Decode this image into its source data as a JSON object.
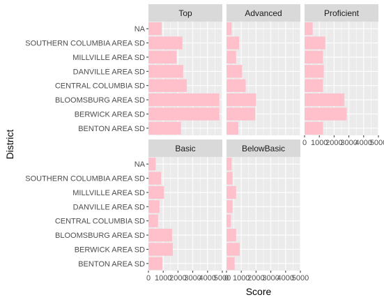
{
  "chart_data": {
    "type": "bar",
    "orientation": "horizontal",
    "xlabel": "Score",
    "ylabel": "District",
    "xlim": [
      0,
      5000
    ],
    "xticks": [
      0,
      1000,
      2000,
      3000,
      4000,
      5000
    ],
    "xtick_labels": [
      "0",
      "1000",
      "2000",
      "3000",
      "4000",
      "5000"
    ],
    "categories": [
      "NA",
      "SOUTHERN COLUMBIA AREA SD",
      "MILLVILLE AREA SD",
      "DANVILLE AREA SD",
      "CENTRAL COLUMBIA SD",
      "BLOOMSBURG AREA SD",
      "BERWICK AREA SD",
      "BENTON AREA SD"
    ],
    "bar_color": "#FFC0CB",
    "panel_bg": "#EBEBEB",
    "strip_bg": "#D9D9D9",
    "grid_color": "#FFFFFF",
    "panels": [
      {
        "name": "Top",
        "values": [
          900,
          2300,
          1900,
          2350,
          2600,
          4800,
          4800,
          2200
        ]
      },
      {
        "name": "Advanced",
        "values": [
          350,
          850,
          650,
          1050,
          1300,
          2000,
          1950,
          800
        ]
      },
      {
        "name": "Proficient",
        "values": [
          550,
          1400,
          1250,
          1300,
          1250,
          2700,
          2850,
          1250
        ]
      },
      {
        "name": "Basic",
        "values": [
          500,
          850,
          1050,
          750,
          650,
          1600,
          1650,
          950
        ]
      },
      {
        "name": "BelowBasic",
        "values": [
          350,
          400,
          650,
          400,
          300,
          650,
          900,
          550
        ]
      }
    ]
  }
}
